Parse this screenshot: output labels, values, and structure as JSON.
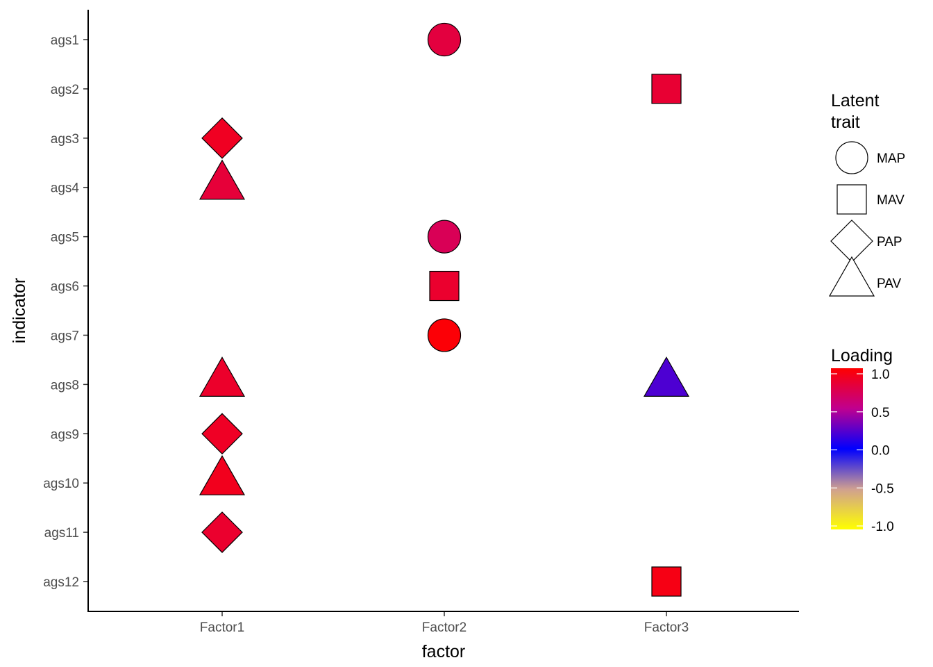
{
  "chart_data": {
    "type": "scatter",
    "xlabel": "factor",
    "ylabel": "indicator",
    "x_categories": [
      "Factor1",
      "Factor2",
      "Factor3"
    ],
    "y_categories": [
      "ags1",
      "ags2",
      "ags3",
      "ags4",
      "ags5",
      "ags6",
      "ags7",
      "ags8",
      "ags9",
      "ags10",
      "ags11",
      "ags12"
    ],
    "grid": false,
    "legend_position": "right",
    "shape_legend": {
      "title_line1": "Latent",
      "title_line2": "trait",
      "entries": [
        {
          "label": "MAP",
          "shape": "circle"
        },
        {
          "label": "MAV",
          "shape": "square"
        },
        {
          "label": "PAP",
          "shape": "diamond"
        },
        {
          "label": "PAV",
          "shape": "triangle"
        }
      ]
    },
    "color_legend": {
      "title": "Loading",
      "range": [
        -1,
        1
      ],
      "ticks": [
        {
          "value": 1.0,
          "label": "1.0"
        },
        {
          "value": 0.5,
          "label": "0.5"
        },
        {
          "value": 0.0,
          "label": "0.0"
        },
        {
          "value": -0.5,
          "label": "-0.5"
        },
        {
          "value": -1.0,
          "label": "-1.0"
        }
      ],
      "stops": [
        {
          "value": -1.0,
          "color": "#ffff00"
        },
        {
          "value": -0.5,
          "color": "#d0a090"
        },
        {
          "value": 0.0,
          "color": "#0000ff"
        },
        {
          "value": 0.5,
          "color": "#c0008f"
        },
        {
          "value": 1.0,
          "color": "#ff0000"
        }
      ]
    },
    "points": [
      {
        "indicator": "ags1",
        "factor": "Factor2",
        "trait": "MAP",
        "loading": 0.78
      },
      {
        "indicator": "ags2",
        "factor": "Factor3",
        "trait": "MAV",
        "loading": 0.82
      },
      {
        "indicator": "ags3",
        "factor": "Factor1",
        "trait": "PAP",
        "loading": 0.88
      },
      {
        "indicator": "ags4",
        "factor": "Factor1",
        "trait": "PAV",
        "loading": 0.8
      },
      {
        "indicator": "ags5",
        "factor": "Factor2",
        "trait": "MAP",
        "loading": 0.7
      },
      {
        "indicator": "ags6",
        "factor": "Factor2",
        "trait": "MAV",
        "loading": 0.84
      },
      {
        "indicator": "ags7",
        "factor": "Factor2",
        "trait": "MAP",
        "loading": 0.98
      },
      {
        "indicator": "ags8",
        "factor": "Factor1",
        "trait": "PAV",
        "loading": 0.85
      },
      {
        "indicator": "ags8",
        "factor": "Factor3",
        "trait": "PAV",
        "loading": 0.2
      },
      {
        "indicator": "ags9",
        "factor": "Factor1",
        "trait": "PAP",
        "loading": 0.87
      },
      {
        "indicator": "ags10",
        "factor": "Factor1",
        "trait": "PAV",
        "loading": 0.9
      },
      {
        "indicator": "ags11",
        "factor": "Factor1",
        "trait": "PAP",
        "loading": 0.84
      },
      {
        "indicator": "ags12",
        "factor": "Factor3",
        "trait": "MAV",
        "loading": 0.93
      }
    ]
  }
}
